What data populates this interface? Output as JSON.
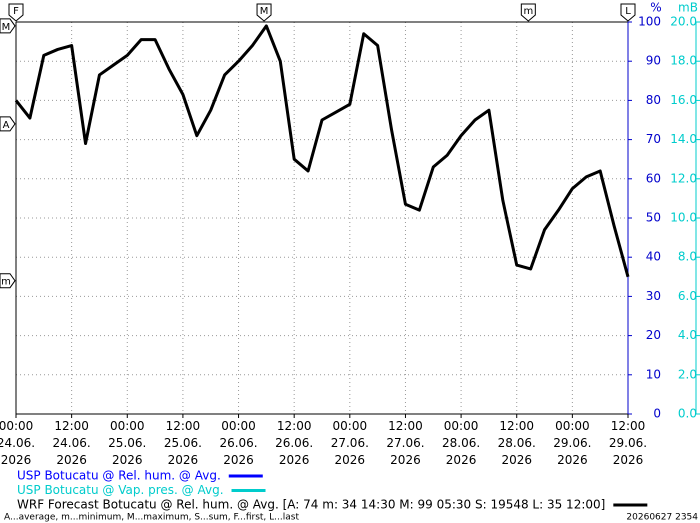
{
  "chart_data": {
    "type": "line",
    "x": [
      0,
      3,
      6,
      9,
      12,
      15,
      18,
      21,
      24,
      27,
      30,
      33,
      36,
      39,
      42,
      45,
      48,
      51,
      54,
      57,
      60,
      63,
      66,
      69,
      72,
      75,
      78,
      81,
      84,
      87,
      90,
      93,
      96,
      99,
      102,
      105,
      108,
      111,
      114,
      117,
      120,
      123,
      126,
      129,
      132
    ],
    "xlim": [
      0,
      132
    ],
    "xticks": [
      {
        "value": 0,
        "label": "00:00\n24.06.\n2026"
      },
      {
        "value": 12,
        "label": "12:00\n24.06.\n2026"
      },
      {
        "value": 24,
        "label": "00:00\n25.06.\n2026"
      },
      {
        "value": 36,
        "label": "12:00\n25.06.\n2026"
      },
      {
        "value": 48,
        "label": "00:00\n26.06.\n2026"
      },
      {
        "value": 60,
        "label": "12:00\n26.06.\n2026"
      },
      {
        "value": 72,
        "label": "00:00\n27.06.\n2026"
      },
      {
        "value": 84,
        "label": "12:00\n27.06.\n2026"
      },
      {
        "value": 96,
        "label": "00:00\n28.06.\n2026"
      },
      {
        "value": 108,
        "label": "12:00\n28.06.\n2026"
      },
      {
        "value": 120,
        "label": "00:00\n29.06.\n2026"
      },
      {
        "value": 132,
        "label": "12:00\n29.06.\n2026"
      }
    ],
    "ylim": [
      0,
      100
    ],
    "yticks": [
      0,
      10,
      20,
      30,
      40,
      50,
      60,
      70,
      80,
      90,
      100
    ],
    "y_label": "%",
    "y_color": "#0000cc",
    "y2lim": [
      0,
      20
    ],
    "y2ticks": [
      {
        "value": 0,
        "label": "0.0"
      },
      {
        "value": 2,
        "label": "2.0"
      },
      {
        "value": 4,
        "label": "4.0"
      },
      {
        "value": 6,
        "label": "6.0"
      },
      {
        "value": 8,
        "label": "8.0"
      },
      {
        "value": 10,
        "label": "10.0"
      },
      {
        "value": 12,
        "label": "12.0"
      },
      {
        "value": 14,
        "label": "14.0"
      },
      {
        "value": 16,
        "label": "16.0"
      },
      {
        "value": 18,
        "label": "18.0"
      },
      {
        "value": 20,
        "label": "20.0"
      }
    ],
    "y2_label": "mB",
    "y2_color": "#00cccc",
    "grid": true,
    "series": [
      {
        "name": "USP Botucatu @ Rel. hum. @ Avg.",
        "color": "#0000ff",
        "values": [
          null,
          null,
          null,
          null,
          null,
          null,
          null,
          null,
          null,
          null,
          null,
          null,
          null,
          null,
          null,
          null,
          null,
          null,
          null,
          null,
          null,
          null,
          null,
          null,
          null,
          null,
          null,
          null,
          null,
          null,
          null,
          null,
          null,
          null,
          null,
          null,
          null,
          null,
          null,
          null,
          null,
          null,
          null,
          null,
          null
        ]
      },
      {
        "name": "USP Botucatu @ Vap. pres. @ Avg.",
        "color": "#00cccc",
        "axis": "y2",
        "values": [
          null,
          null,
          null,
          null,
          null,
          null,
          null,
          null,
          null,
          null,
          null,
          null,
          null,
          null,
          null,
          null,
          null,
          null,
          null,
          null,
          null,
          null,
          null,
          null,
          null,
          null,
          null,
          null,
          null,
          null,
          null,
          null,
          null,
          null,
          null,
          null,
          null,
          null,
          null,
          null,
          null,
          null,
          null,
          null,
          null
        ]
      },
      {
        "name": "WRF Forecast Botucatu @ Rel. hum. @ Avg. [A: 74 m: 34 14:30 M: 99 05:30 S: 19548 L: 35 12:00]",
        "color": "#000000",
        "values": [
          80,
          75.5,
          91.5,
          93,
          94,
          69,
          86.5,
          89,
          91.5,
          95.5,
          95.5,
          88,
          81.5,
          71,
          77.5,
          86.5,
          90,
          94,
          99,
          90,
          65,
          62,
          75,
          77,
          79,
          97,
          94,
          72.5,
          53.5,
          52,
          63,
          66,
          71,
          75,
          77.5,
          54.5,
          38,
          37,
          47,
          52,
          57.5,
          60.5,
          62,
          48,
          35
        ]
      }
    ],
    "left_markers": [
      {
        "label": "M",
        "value": 99
      },
      {
        "label": "A",
        "value": 74
      },
      {
        "label": "m",
        "value": 34
      }
    ],
    "top_markers": [
      {
        "label": "F",
        "x": 0
      },
      {
        "label": "M",
        "x": 53.5
      },
      {
        "label": "m",
        "x": 110.5
      },
      {
        "label": "L",
        "x": 132
      }
    ],
    "footnote": "A...average, m...minimum, M...maximum, S...sum, F...first, L...last",
    "stamp": "20260627 2354"
  }
}
